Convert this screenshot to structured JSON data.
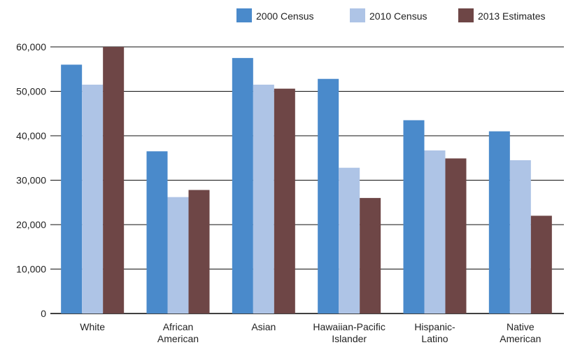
{
  "chart_data": {
    "type": "bar",
    "categories": [
      [
        "White"
      ],
      [
        "African",
        "American"
      ],
      [
        "Asian"
      ],
      [
        "Hawaiian-Pacific",
        "Islander"
      ],
      [
        "Hispanic-",
        "Latino"
      ],
      [
        "Native",
        "American"
      ]
    ],
    "series": [
      {
        "name": "2000 Census",
        "color": "#4a8acb",
        "values": [
          56000,
          36500,
          57500,
          52800,
          43500,
          41000
        ]
      },
      {
        "name": "2010 Census",
        "color": "#aec4e6",
        "values": [
          51500,
          26200,
          51500,
          32800,
          36700,
          34500
        ]
      },
      {
        "name": "2013 Estimates",
        "color": "#6e4646",
        "values": [
          60000,
          27800,
          50600,
          26000,
          34900,
          22000
        ]
      }
    ],
    "yticks": [
      "0",
      "10,000",
      "20,000",
      "30,000",
      "40,000",
      "50,000",
      "60,000"
    ],
    "ylim": [
      0,
      60000
    ],
    "grid": true,
    "legend": "top-right"
  }
}
